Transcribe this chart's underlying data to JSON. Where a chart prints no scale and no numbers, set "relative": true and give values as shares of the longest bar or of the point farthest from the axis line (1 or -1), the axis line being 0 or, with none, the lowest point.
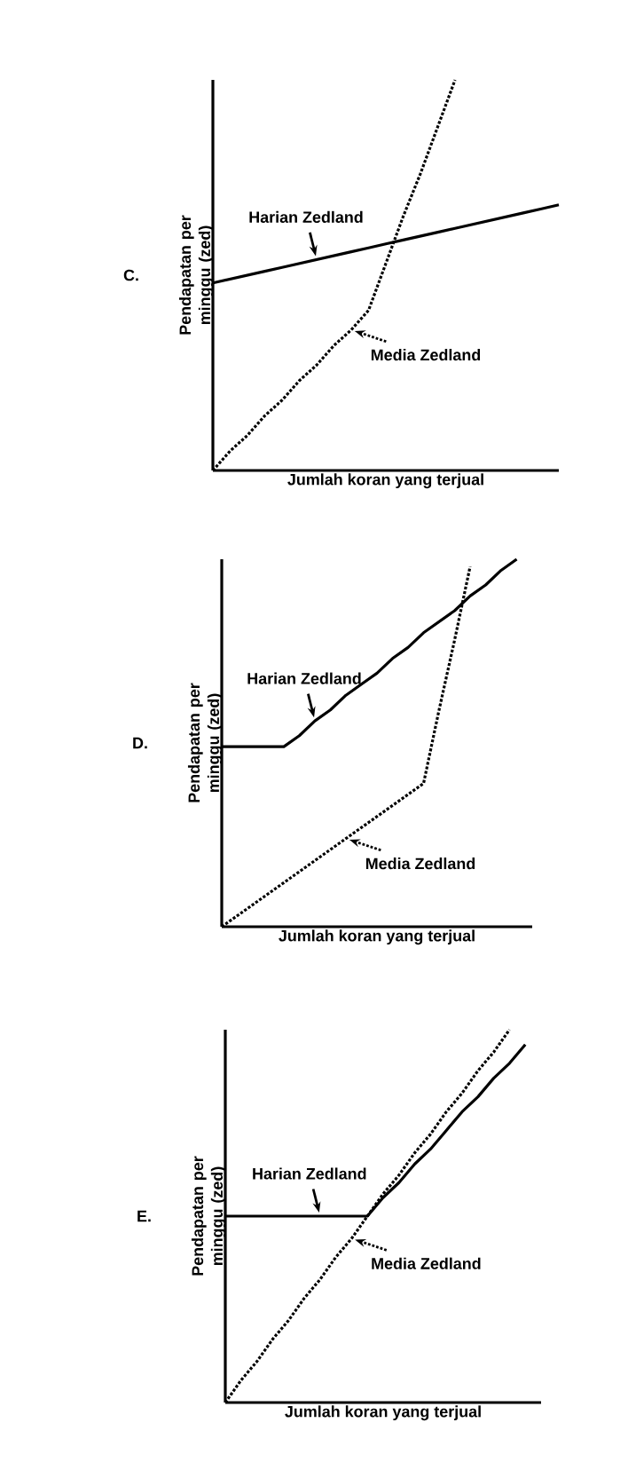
{
  "chart_data": [
    {
      "type": "line",
      "title": "C.",
      "xlabel": "Jumlah koran yang terjual",
      "ylabel": "Pendapatan per minggu (zed)",
      "relative": true,
      "categories": [
        null,
        null,
        null,
        null,
        null,
        null,
        null,
        null,
        null,
        null,
        null,
        null,
        null,
        null,
        null,
        null,
        null,
        null,
        null,
        null,
        null
      ],
      "series": [
        {
          "name": "Harian Zedland",
          "color": "#000000",
          "line_style": "solid",
          "values": [
            0.48,
            0.49,
            0.5,
            0.51,
            0.52,
            0.53,
            0.54,
            0.55,
            0.56,
            0.57,
            0.58,
            0.59,
            0.6,
            0.61,
            0.62,
            0.63,
            0.64,
            0.65,
            0.66,
            0.67,
            0.68
          ]
        },
        {
          "name": "Media Zedland",
          "color": "#000000",
          "line_style": "dotted",
          "values": [
            0,
            0.05,
            0.09,
            0.14,
            0.18,
            0.23,
            0.27,
            0.32,
            0.36,
            0.41,
            0.53,
            0.65,
            0.76,
            0.88,
            1.0,
            null,
            null,
            null,
            null,
            null,
            null
          ]
        }
      ]
    },
    {
      "type": "line",
      "title": "D.",
      "xlabel": "Jumlah koran yang terjual",
      "ylabel": "Pendapatan per minggu (zed)",
      "relative": true,
      "categories": [
        null,
        null,
        null,
        null,
        null,
        null,
        null,
        null,
        null,
        null,
        null,
        null,
        null,
        null,
        null,
        null,
        null,
        null,
        null,
        null,
        null
      ],
      "series": [
        {
          "name": "Harian Zedland",
          "color": "#000000",
          "line_style": "solid",
          "values": [
            0.49,
            0.49,
            0.49,
            0.49,
            0.49,
            0.52,
            0.56,
            0.59,
            0.63,
            0.66,
            0.69,
            0.73,
            0.76,
            0.8,
            0.83,
            0.86,
            0.9,
            0.93,
            0.97,
            1.0,
            null
          ]
        },
        {
          "name": "Media Zedland",
          "color": "#000000",
          "line_style": "dotted",
          "values": [
            0,
            0.03,
            0.06,
            0.09,
            0.12,
            0.15,
            0.18,
            0.21,
            0.24,
            0.27,
            0.3,
            0.33,
            0.36,
            0.39,
            0.59,
            0.78,
            0.98,
            null,
            null,
            null,
            null
          ]
        }
      ]
    },
    {
      "type": "line",
      "title": "E.",
      "xlabel": "Jumlah koran yang terjual",
      "ylabel": "Pendapatan per minggu (zed)",
      "relative": true,
      "categories": [
        null,
        null,
        null,
        null,
        null,
        null,
        null,
        null,
        null,
        null,
        null,
        null,
        null,
        null,
        null,
        null,
        null,
        null,
        null,
        null,
        null
      ],
      "series": [
        {
          "name": "Harian Zedland",
          "color": "#000000",
          "line_style": "solid",
          "values": [
            0.5,
            0.5,
            0.5,
            0.5,
            0.5,
            0.5,
            0.5,
            0.5,
            0.5,
            0.5,
            0.55,
            0.59,
            0.64,
            0.68,
            0.73,
            0.78,
            0.82,
            0.87,
            0.91,
            0.96,
            null
          ]
        },
        {
          "name": "Media Zedland",
          "color": "#000000",
          "line_style": "dotted",
          "values": [
            0,
            0.06,
            0.11,
            0.17,
            0.22,
            0.28,
            0.33,
            0.39,
            0.44,
            0.5,
            0.56,
            0.61,
            0.67,
            0.72,
            0.78,
            0.83,
            0.89,
            0.94,
            1.0,
            null,
            null
          ]
        }
      ]
    }
  ]
}
